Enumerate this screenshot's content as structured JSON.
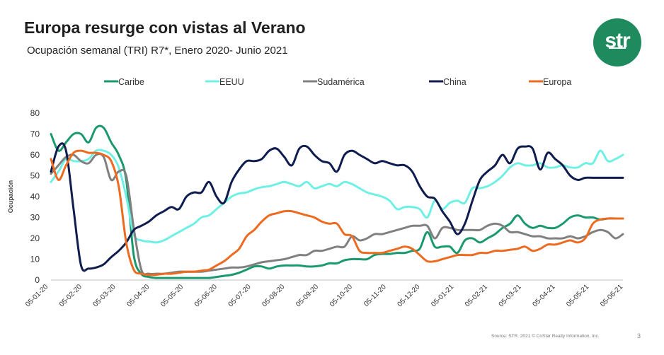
{
  "header": {
    "title": "Europa resurge con vistas al Verano",
    "subtitle": "Ocupación semanal (TRI) R7*, Enero 2020- Junio 2021",
    "logo_text": "str",
    "brand_color": "#1f8a5e"
  },
  "footer": {
    "source": "Source: STR. 2021 © CoStar Realty Information, Inc.",
    "page": "3"
  },
  "chart_data": {
    "type": "line",
    "ylabel": "Ocupación",
    "xlabel": "",
    "ylim": [
      0,
      80
    ],
    "yticks": [
      0,
      10,
      20,
      30,
      40,
      50,
      60,
      70,
      80
    ],
    "grid": false,
    "legend_position": "top",
    "x_tick_labels": [
      "05-01-20",
      "05-02-20",
      "05-03-20",
      "05-04-20",
      "05-05-20",
      "05-06-20",
      "05-07-20",
      "05-08-20",
      "05-09-20",
      "05-10-20",
      "05-11-20",
      "05-12-20",
      "05-01-21",
      "05-02-21",
      "05-03-21",
      "05-04-21",
      "05-05-21",
      "05-06-21"
    ],
    "x": [
      "2020-01-05",
      "2020-01-12",
      "2020-01-19",
      "2020-01-26",
      "2020-02-02",
      "2020-02-09",
      "2020-02-16",
      "2020-02-23",
      "2020-03-01",
      "2020-03-08",
      "2020-03-15",
      "2020-03-22",
      "2020-03-29",
      "2020-04-05",
      "2020-04-12",
      "2020-04-19",
      "2020-04-26",
      "2020-05-03",
      "2020-05-10",
      "2020-05-17",
      "2020-05-24",
      "2020-05-31",
      "2020-06-07",
      "2020-06-14",
      "2020-06-21",
      "2020-06-28",
      "2020-07-05",
      "2020-07-12",
      "2020-07-19",
      "2020-07-26",
      "2020-08-02",
      "2020-08-09",
      "2020-08-16",
      "2020-08-23",
      "2020-08-30",
      "2020-09-06",
      "2020-09-13",
      "2020-09-20",
      "2020-09-27",
      "2020-10-04",
      "2020-10-11",
      "2020-10-18",
      "2020-10-25",
      "2020-11-01",
      "2020-11-08",
      "2020-11-15",
      "2020-11-22",
      "2020-11-29",
      "2020-12-06",
      "2020-12-13",
      "2020-12-20",
      "2020-12-27",
      "2021-01-03",
      "2021-01-10",
      "2021-01-17",
      "2021-01-24",
      "2021-01-31",
      "2021-02-07",
      "2021-02-14",
      "2021-02-21",
      "2021-02-28",
      "2021-03-07",
      "2021-03-14",
      "2021-03-21",
      "2021-03-28",
      "2021-04-04",
      "2021-04-11",
      "2021-04-18",
      "2021-04-25",
      "2021-05-02",
      "2021-05-09",
      "2021-05-16",
      "2021-05-23",
      "2021-05-30",
      "2021-06-06",
      "2021-06-13",
      "2021-06-20"
    ],
    "series": [
      {
        "name": "Caribe",
        "color": "#1a9a6c",
        "values": [
          70,
          62,
          66,
          70,
          70,
          66,
          73,
          73,
          66,
          60,
          48,
          12,
          3,
          1.5,
          1,
          1,
          1,
          1,
          1,
          1,
          1,
          1,
          1.5,
          2,
          2.5,
          3.5,
          5,
          6.5,
          6.5,
          5.5,
          6.5,
          7,
          7,
          7,
          6.5,
          6.5,
          7,
          8,
          8,
          9.5,
          10,
          10,
          10,
          12,
          12.5,
          12.5,
          13,
          13,
          14,
          15,
          23,
          16,
          16,
          16,
          13,
          19,
          20,
          18,
          20,
          22,
          25,
          27,
          31,
          27,
          25,
          26,
          25,
          25,
          27,
          30,
          31,
          30,
          30,
          29,
          29.5,
          29.5,
          29.5
        ]
      },
      {
        "name": "EEUU",
        "color": "#6ff0e4",
        "values": [
          47,
          52,
          58,
          57,
          57,
          58,
          62,
          62,
          60,
          54,
          40,
          22,
          19,
          18.5,
          18,
          19,
          21,
          23,
          25,
          27,
          30,
          31,
          34,
          37,
          40,
          41.5,
          42,
          43.5,
          44.5,
          45,
          46,
          47,
          46,
          45,
          47,
          44,
          45,
          46,
          45,
          47,
          46,
          44,
          42,
          41,
          40,
          38,
          34,
          35,
          35,
          34,
          30,
          38,
          34,
          37,
          38,
          37,
          44,
          44,
          45,
          47,
          50,
          54,
          56,
          55,
          55,
          56,
          54,
          54,
          55,
          54,
          54,
          56,
          56,
          62,
          57,
          58,
          60
        ]
      },
      {
        "name": "Sudamérica",
        "color": "#808080",
        "values": [
          51,
          55,
          59,
          60,
          57,
          56,
          60,
          59,
          48,
          52,
          50,
          25,
          5,
          3,
          3,
          3,
          3.5,
          4,
          4,
          4,
          4,
          4.5,
          5,
          5.5,
          6,
          6,
          6.5,
          7.5,
          8.5,
          9,
          9.5,
          10,
          11,
          12,
          12,
          14,
          14,
          15,
          16,
          16,
          21,
          19,
          20,
          22,
          22,
          23,
          24,
          25,
          26,
          26,
          26,
          20,
          25,
          25,
          24,
          24,
          24,
          24,
          26,
          27,
          26,
          23,
          23,
          22,
          21,
          21,
          20,
          20,
          20,
          21,
          20,
          21,
          23,
          24,
          23,
          20,
          22
        ]
      },
      {
        "name": "China",
        "color": "#0f1c4e",
        "values": [
          52,
          64,
          62,
          34,
          7,
          5.5,
          6,
          7.5,
          11,
          14,
          18,
          24,
          26,
          28,
          31,
          33,
          35,
          34,
          40,
          42,
          42,
          47,
          40,
          37,
          47,
          53,
          57,
          57,
          58,
          62,
          63,
          59,
          55,
          63,
          64,
          60,
          57,
          56,
          52,
          60,
          62,
          60,
          58,
          56,
          57,
          56,
          55,
          55,
          52,
          45,
          40,
          39,
          33,
          28,
          22,
          27,
          38,
          48,
          52,
          55,
          60,
          56,
          63,
          64,
          63,
          53,
          61,
          58,
          55,
          50,
          48,
          49,
          49,
          49,
          49,
          49,
          49
        ]
      },
      {
        "name": "Europa",
        "color": "#ee6a1f",
        "values": [
          58,
          48,
          55,
          61,
          62,
          61,
          61,
          60,
          57,
          45,
          18,
          5,
          3,
          2.5,
          2.5,
          3,
          3,
          3.5,
          4,
          4,
          4.5,
          5,
          7,
          9,
          12,
          15,
          21,
          24,
          28,
          31,
          32,
          33,
          33,
          32,
          31,
          30,
          28,
          27,
          27,
          22,
          21,
          14,
          13,
          13,
          13,
          14,
          15,
          16,
          15,
          12,
          9,
          9,
          10,
          11,
          12,
          12,
          12,
          13,
          13,
          14,
          14,
          14.5,
          15,
          16,
          14,
          15,
          17,
          17,
          18,
          19,
          18,
          20,
          27,
          29,
          29.5,
          29.5,
          29.5
        ]
      }
    ]
  }
}
